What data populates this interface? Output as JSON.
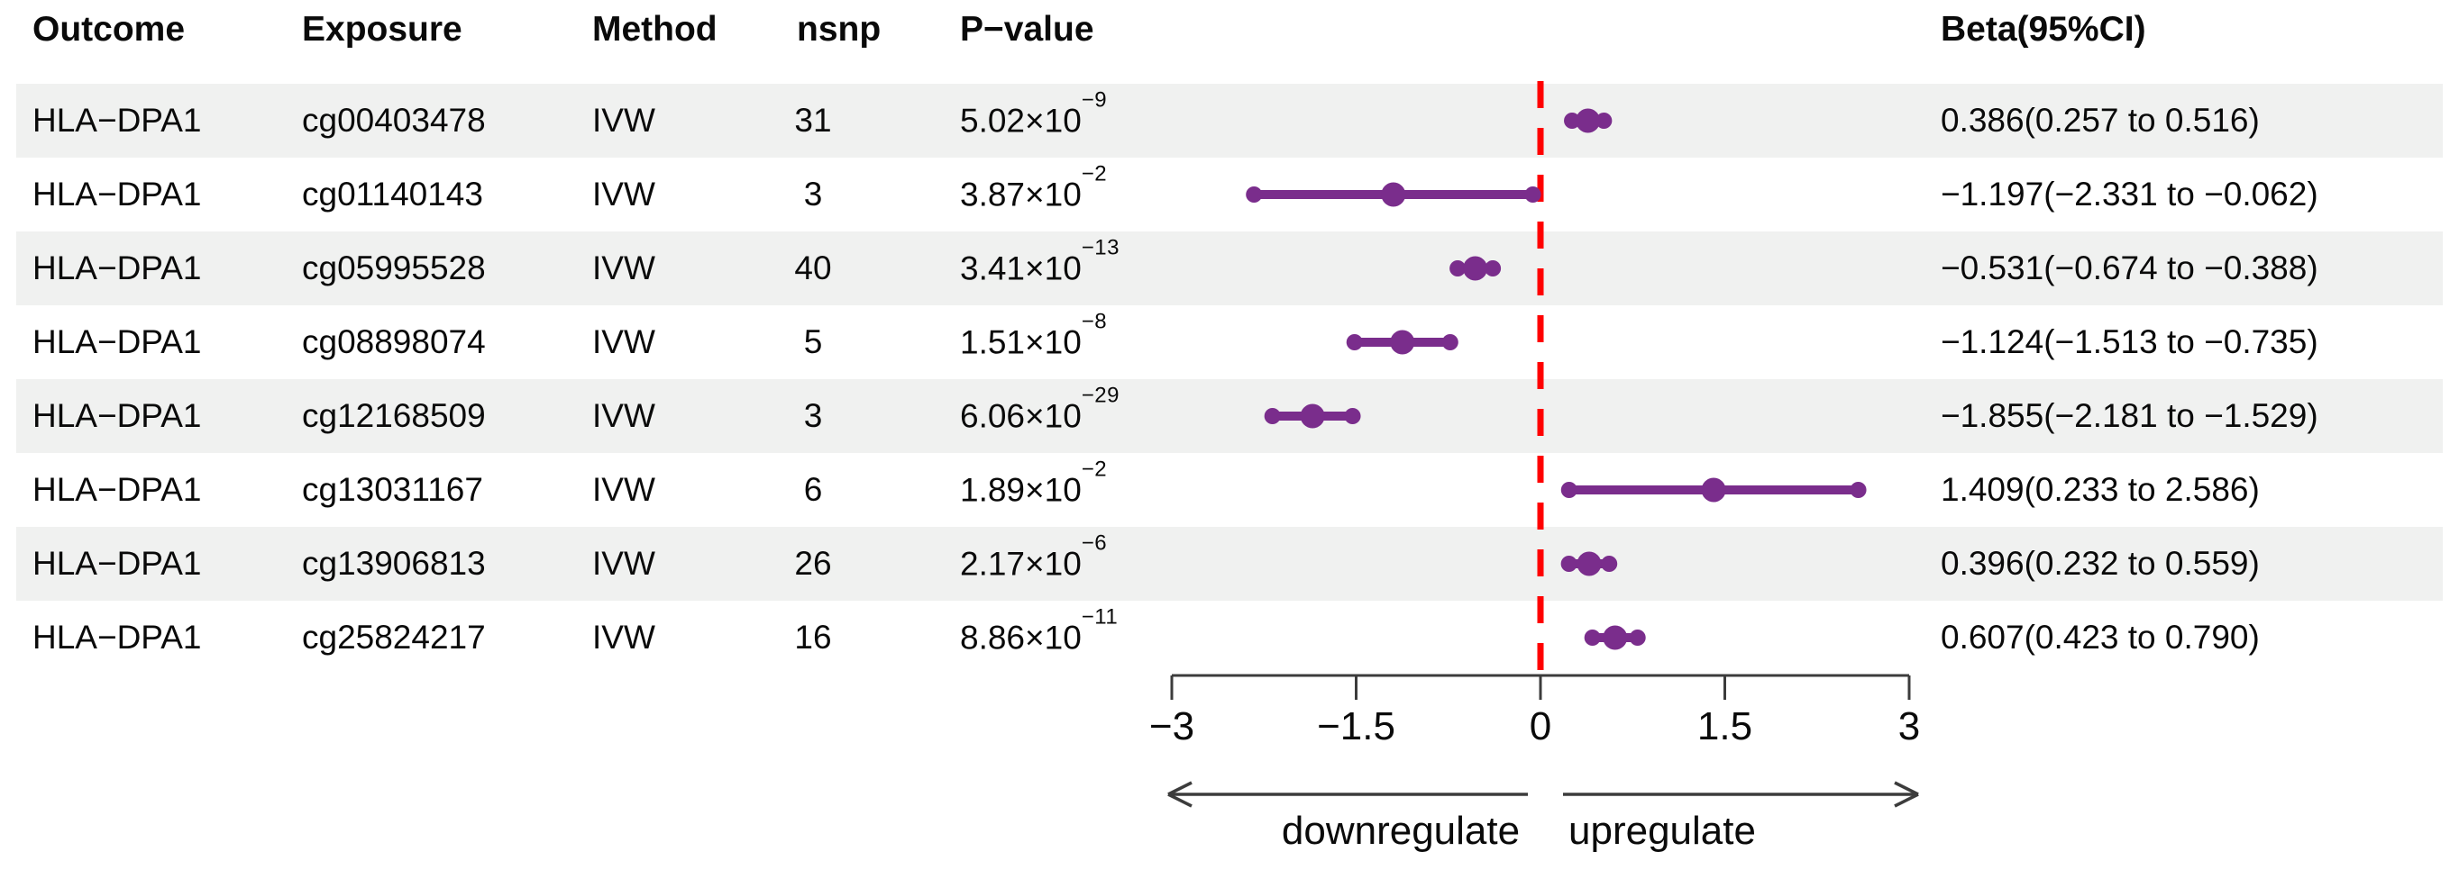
{
  "table": {
    "headers": {
      "outcome": "Outcome",
      "exposure": "Exposure",
      "method": "Method",
      "nsnp": "nsnp",
      "pvalue": "P−value",
      "beta": "Beta(95%CI)"
    },
    "rows": [
      {
        "outcome": "HLA−DPA1",
        "exposure": "cg00403478",
        "method": "IVW",
        "nsnp": "31",
        "pvalue_base": "5.02×10",
        "pvalue_exp": "−9",
        "beta": "0.386(0.257 to 0.516)"
      },
      {
        "outcome": "HLA−DPA1",
        "exposure": "cg01140143",
        "method": "IVW",
        "nsnp": "3",
        "pvalue_base": "3.87×10",
        "pvalue_exp": "−2",
        "beta": "−1.197(−2.331 to −0.062)"
      },
      {
        "outcome": "HLA−DPA1",
        "exposure": "cg05995528",
        "method": "IVW",
        "nsnp": "40",
        "pvalue_base": "3.41×10",
        "pvalue_exp": "−13",
        "beta": "−0.531(−0.674 to −0.388)"
      },
      {
        "outcome": "HLA−DPA1",
        "exposure": "cg08898074",
        "method": "IVW",
        "nsnp": "5",
        "pvalue_base": "1.51×10",
        "pvalue_exp": "−8",
        "beta": "−1.124(−1.513 to −0.735)"
      },
      {
        "outcome": "HLA−DPA1",
        "exposure": "cg12168509",
        "method": "IVW",
        "nsnp": "3",
        "pvalue_base": "6.06×10",
        "pvalue_exp": "−29",
        "beta": "−1.855(−2.181 to −1.529)"
      },
      {
        "outcome": "HLA−DPA1",
        "exposure": "cg13031167",
        "method": "IVW",
        "nsnp": "6",
        "pvalue_base": "1.89×10",
        "pvalue_exp": "−2",
        "beta": "1.409(0.233 to 2.586)"
      },
      {
        "outcome": "HLA−DPA1",
        "exposure": "cg13906813",
        "method": "IVW",
        "nsnp": "26",
        "pvalue_base": "2.17×10",
        "pvalue_exp": "−6",
        "beta": "0.396(0.232 to 0.559)"
      },
      {
        "outcome": "HLA−DPA1",
        "exposure": "cg25824217",
        "method": "IVW",
        "nsnp": "16",
        "pvalue_base": "8.86×10",
        "pvalue_exp": "−11",
        "beta": "0.607(0.423 to 0.790)"
      }
    ]
  },
  "chart_data": {
    "type": "forest",
    "xlim": [
      -3,
      3
    ],
    "x_ticks": [
      -3,
      -1.5,
      0,
      1.5,
      3
    ],
    "x_tick_labels": [
      "−3",
      "−1.5",
      "0",
      "1.5",
      "3"
    ],
    "reference_x": 0,
    "points": [
      {
        "label": "cg00403478",
        "beta": 0.386,
        "lo": 0.257,
        "hi": 0.516
      },
      {
        "label": "cg01140143",
        "beta": -1.197,
        "lo": -2.331,
        "hi": -0.062
      },
      {
        "label": "cg05995528",
        "beta": -0.531,
        "lo": -0.674,
        "hi": -0.388
      },
      {
        "label": "cg08898074",
        "beta": -1.124,
        "lo": -1.513,
        "hi": -0.735
      },
      {
        "label": "cg12168509",
        "beta": -1.855,
        "lo": -2.181,
        "hi": -1.529
      },
      {
        "label": "cg13031167",
        "beta": 1.409,
        "lo": 0.233,
        "hi": 2.586
      },
      {
        "label": "cg13906813",
        "beta": 0.396,
        "lo": 0.232,
        "hi": 0.559
      },
      {
        "label": "cg25824217",
        "beta": 0.607,
        "lo": 0.423,
        "hi": 0.79
      }
    ],
    "arrow_left_label": "downregulate",
    "arrow_right_label": "upregulate"
  },
  "colors": {
    "marker": "#7a2d8c",
    "reference_line": "#ff0000",
    "stripe": "#f0f1f0",
    "axis": "#3c3c3c",
    "text": "#0a0a0a"
  }
}
